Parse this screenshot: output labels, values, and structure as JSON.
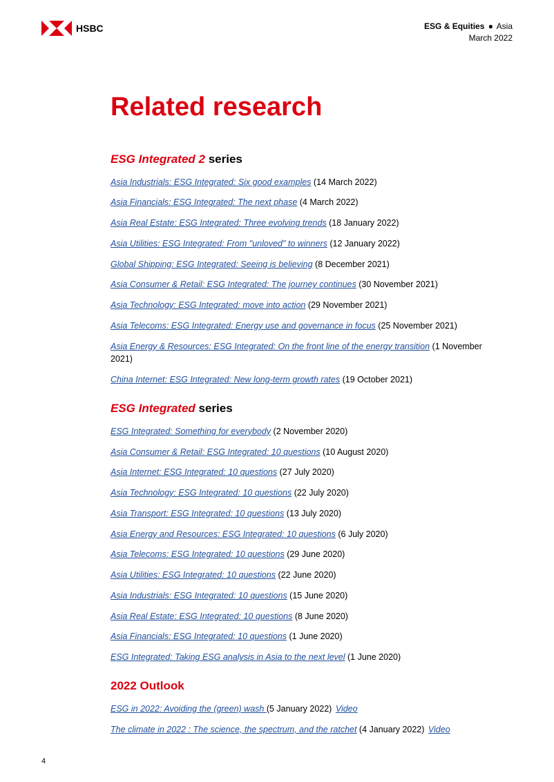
{
  "header": {
    "brand": "HSBC",
    "category_bold": "ESG & Equities",
    "bullet": "●",
    "region": "Asia",
    "date": "March 2022"
  },
  "title": "Related research",
  "sections": [
    {
      "heading_red": "ESG Integrated 2",
      "heading_black": " series",
      "all_red": false,
      "items": [
        {
          "link": "Asia Industrials: ESG Integrated: Six good examples",
          "date": " (14 March 2022)"
        },
        {
          "link": "Asia Financials: ESG Integrated: The next phase",
          "date": " (4 March 2022)"
        },
        {
          "link": "Asia Real Estate: ESG Integrated: Three evolving trends",
          "date": " (18 January 2022)"
        },
        {
          "link": "Asia Utilities: ESG Integrated: From \"unloved\" to winners",
          "date": " (12 January 2022)"
        },
        {
          "link": "Global Shipping: ESG Integrated: Seeing is believing",
          "date": " (8 December 2021)"
        },
        {
          "link": "Asia Consumer & Retail: ESG Integrated: The journey continues",
          "date": " (30 November 2021)"
        },
        {
          "link": "Asia Technology: ESG Integrated: move into action",
          "date": " (29 November 2021)"
        },
        {
          "link": "Asia Telecoms: ESG Integrated: Energy use and governance in focus",
          "date": " (25 November 2021)"
        },
        {
          "link": "Asia Energy & Resources: ESG Integrated: On the front line of the energy transition",
          "date": " (1 November 2021)"
        },
        {
          "link": "China Internet: ESG Integrated: New long-term growth rates",
          "date": " (19 October 2021)"
        }
      ]
    },
    {
      "heading_red": "ESG Integrated",
      "heading_black": " series",
      "all_red": false,
      "items": [
        {
          "link": "ESG Integrated: Something for everybody",
          "date": " (2 November 2020)"
        },
        {
          "link": "Asia Consumer & Retail: ESG Integrated: 10 questions",
          "date": " (10 August 2020)"
        },
        {
          "link": "Asia Internet: ESG Integrated: 10 questions",
          "date": " (27 July 2020)"
        },
        {
          "link": "Asia Technology: ESG Integrated: 10 questions",
          "date": " (22 July 2020)"
        },
        {
          "link": "Asia Transport: ESG Integrated: 10 questions",
          "date": " (13 July 2020)"
        },
        {
          "link": "Asia Energy and Resources: ESG Integrated: 10 questions",
          "date": " (6 July 2020)"
        },
        {
          "link": "Asia Telecoms: ESG Integrated: 10 questions",
          "date": " (29 June 2020)"
        },
        {
          "link": "Asia Utilities: ESG Integrated: 10 questions",
          "date": " (22 June 2020)"
        },
        {
          "link": "Asia Industrials: ESG Integrated: 10 questions",
          "date": " (15 June 2020)"
        },
        {
          "link": "Asia Real Estate: ESG Integrated: 10 questions",
          "date": " (8 June 2020)"
        },
        {
          "link": "Asia Financials: ESG Integrated: 10 questions",
          "date": " (1 June 2020)"
        },
        {
          "link": "ESG Integrated: Taking ESG analysis in Asia to the next level",
          "date": " (1 June 2020)"
        }
      ]
    },
    {
      "heading_red": "2022 Outlook",
      "heading_black": "",
      "all_red": true,
      "items": [
        {
          "link": "ESG in 2022: Avoiding the (green) wash ",
          "date": "(5 January 2022) ",
          "video": "Video"
        },
        {
          "link": "The climate in 2022 : The science, the spectrum, and the ratchet",
          "date": " (4 January 2022) ",
          "video": "Video"
        }
      ]
    }
  ],
  "page_number": "4",
  "colors": {
    "brand_red": "#db0011",
    "link_blue": "#1f4e9c",
    "text_black": "#000000",
    "background": "#ffffff"
  }
}
